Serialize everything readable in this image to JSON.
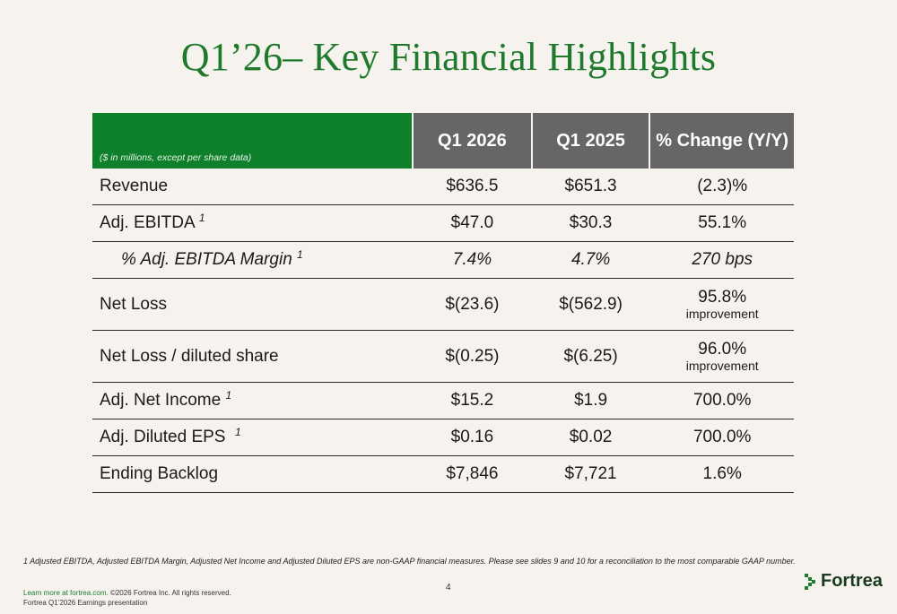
{
  "title": "Q1’26– Key Financial Highlights",
  "table": {
    "note": "($ in millions, except per share data)",
    "columns": [
      "Q1 2026",
      "Q1 2025",
      "% Change (Y/Y)"
    ],
    "rows": [
      {
        "label": "Revenue",
        "sup": "",
        "q1_2026": "$636.5",
        "q1_2025": "$651.3",
        "change": "(2.3)%",
        "change_sub": ""
      },
      {
        "label": "Adj. EBITDA",
        "sup": "1",
        "q1_2026": "$47.0",
        "q1_2025": "$30.3",
        "change": "55.1%",
        "change_sub": ""
      },
      {
        "label": "% Adj. EBITDA Margin",
        "sup": "1",
        "q1_2026": "7.4%",
        "q1_2025": "4.7%",
        "change": "270 bps",
        "change_sub": ""
      },
      {
        "label": "Net Loss",
        "sup": "",
        "q1_2026": "$(23.6)",
        "q1_2025": "$(562.9)",
        "change": "95.8%",
        "change_sub": "improvement"
      },
      {
        "label": "Net Loss / diluted share",
        "sup": "",
        "q1_2026": "$(0.25)",
        "q1_2025": "$(6.25)",
        "change": "96.0%",
        "change_sub": "improvement"
      },
      {
        "label": "Adj. Net Income",
        "sup": "1",
        "q1_2026": "$15.2",
        "q1_2025": "$1.9",
        "change": "700.0%",
        "change_sub": ""
      },
      {
        "label": "Adj. Diluted EPS",
        "sup": "1",
        "q1_2026": "$0.16",
        "q1_2025": "$0.02",
        "change": "700.0%",
        "change_sub": ""
      },
      {
        "label": "Ending Backlog",
        "sup": "",
        "q1_2026": "$7,846",
        "q1_2025": "$7,721",
        "change": "1.6%",
        "change_sub": ""
      }
    ]
  },
  "footnote": "1 Adjusted EBITDA, Adjusted EBITDA Margin, Adjusted Net Income and Adjusted Diluted EPS are non-GAAP financial measures.  Please see slides 9 and 10  for a reconciliation to the most comparable GAAP number.",
  "page_number": "4",
  "footer": {
    "link_text": "Learn more at fortrea.com.",
    "copyright": " ©2026 Fortrea Inc. All rights reserved.",
    "presentation": "Fortrea Q1’2026 Earnings presentation"
  },
  "logo": {
    "text": "Fortrea",
    "icon": "fortrea-chevron-icon",
    "color": "#1f7a2e"
  },
  "colors": {
    "title": "#1f7a2e",
    "header_green": "#0e7f2a",
    "header_gray": "#666666",
    "background": "#f6f3ee"
  }
}
